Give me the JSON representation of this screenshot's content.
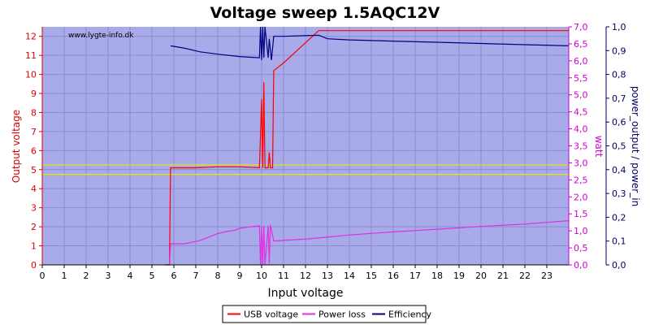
{
  "chart_data": {
    "type": "line",
    "title": "Voltage sweep 1.5AQC12V",
    "watermark": "www.lygte-info.dk",
    "xlabel": "Input voltage",
    "ylabel_left": "Output voltage",
    "ylabel_right1": "watt",
    "ylabel_right2": "power_output / power_in",
    "xlim": [
      0,
      24
    ],
    "ylim_left": [
      0,
      12.5
    ],
    "ylim_right1": [
      0,
      7.0
    ],
    "ylim_right2": [
      0,
      1.0
    ],
    "grid": true,
    "legend_position": "bottom-center",
    "x_ticks": [
      "0",
      "1",
      "2",
      "3",
      "4",
      "5",
      "6",
      "7",
      "8",
      "9",
      "10",
      "11",
      "12",
      "13",
      "14",
      "15",
      "16",
      "17",
      "18",
      "19",
      "20",
      "21",
      "22",
      "23"
    ],
    "y_left_ticks": [
      "0",
      "1",
      "2",
      "3",
      "4",
      "5",
      "6",
      "7",
      "8",
      "9",
      "10",
      "11",
      "12"
    ],
    "y_right1_ticks": [
      "0,0",
      "0,5",
      "1,0",
      "1,5",
      "2,0",
      "2,5",
      "3,0",
      "3,5",
      "4,0",
      "4,5",
      "5,0",
      "5,5",
      "6,0",
      "6,5",
      "7,0"
    ],
    "y_right2_ticks": [
      "0,0",
      "0,1",
      "0,2",
      "0,3",
      "0,4",
      "0,5",
      "0,6",
      "0,7",
      "0,8",
      "0,9",
      "1,0"
    ],
    "reference_lines_left": [
      4.75,
      5.25
    ],
    "colors": {
      "usb_voltage": "#ff0000",
      "power_loss": "#e030e0",
      "efficiency": "#000080",
      "plot_bg": "#a8aaea",
      "grid": "#8a8cd0",
      "ref_line": "#e8e800",
      "left_axis": "#dd0000",
      "right1_axis": "#cc00cc",
      "right2_axis": "#000060"
    },
    "series": [
      {
        "name": "USB voltage",
        "axis": "left",
        "color": "#ff0000",
        "points": [
          [
            5.6,
            0
          ],
          [
            5.8,
            0
          ],
          [
            5.85,
            5.1
          ],
          [
            7,
            5.1
          ],
          [
            8,
            5.15
          ],
          [
            9,
            5.15
          ],
          [
            9.9,
            5.1
          ],
          [
            10.0,
            8.7
          ],
          [
            10.05,
            5.1
          ],
          [
            10.1,
            9.6
          ],
          [
            10.15,
            5.1
          ],
          [
            10.3,
            5.1
          ],
          [
            10.35,
            5.9
          ],
          [
            10.4,
            5.1
          ],
          [
            10.5,
            5.1
          ],
          [
            10.55,
            10.2
          ],
          [
            11,
            10.6
          ],
          [
            12.6,
            12.3
          ],
          [
            24,
            12.3
          ]
        ]
      },
      {
        "name": "Power loss",
        "axis": "right1",
        "color": "#e030e0",
        "points": [
          [
            5.6,
            0
          ],
          [
            5.8,
            0
          ],
          [
            5.85,
            0.62
          ],
          [
            6.5,
            0.62
          ],
          [
            7.2,
            0.72
          ],
          [
            8,
            0.92
          ],
          [
            8.4,
            0.98
          ],
          [
            8.8,
            1.02
          ],
          [
            9,
            1.08
          ],
          [
            9.5,
            1.12
          ],
          [
            9.9,
            1.15
          ],
          [
            9.95,
            0
          ],
          [
            10.0,
            1.15
          ],
          [
            10.05,
            0
          ],
          [
            10.1,
            1.15
          ],
          [
            10.15,
            0
          ],
          [
            10.3,
            1.15
          ],
          [
            10.35,
            0.05
          ],
          [
            10.4,
            1.18
          ],
          [
            10.55,
            0.7
          ],
          [
            11,
            0.72
          ],
          [
            12,
            0.76
          ],
          [
            12.6,
            0.79
          ],
          [
            14,
            0.88
          ],
          [
            16,
            0.97
          ],
          [
            18,
            1.05
          ],
          [
            20,
            1.13
          ],
          [
            22,
            1.2
          ],
          [
            24,
            1.3
          ]
        ]
      },
      {
        "name": "Efficiency",
        "axis": "right2",
        "color": "#000080",
        "points": [
          [
            5.85,
            0.92
          ],
          [
            6.5,
            0.91
          ],
          [
            7.2,
            0.895
          ],
          [
            8,
            0.885
          ],
          [
            9,
            0.875
          ],
          [
            9.9,
            0.87
          ],
          [
            9.95,
            1.0
          ],
          [
            10.0,
            0.86
          ],
          [
            10.05,
            1.0
          ],
          [
            10.1,
            0.87
          ],
          [
            10.15,
            1.0
          ],
          [
            10.3,
            0.87
          ],
          [
            10.35,
            0.95
          ],
          [
            10.45,
            0.86
          ],
          [
            10.55,
            0.96
          ],
          [
            11,
            0.96
          ],
          [
            12.6,
            0.965
          ],
          [
            13,
            0.95
          ],
          [
            14,
            0.945
          ],
          [
            16,
            0.94
          ],
          [
            18,
            0.935
          ],
          [
            20,
            0.93
          ],
          [
            22,
            0.925
          ],
          [
            24,
            0.92
          ]
        ]
      }
    ]
  }
}
